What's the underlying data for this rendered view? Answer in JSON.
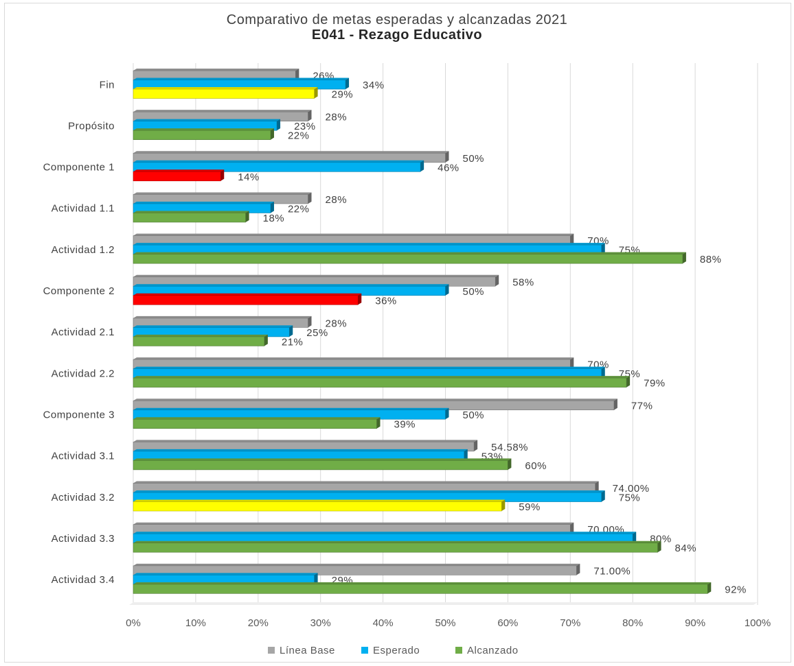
{
  "chart_data": {
    "type": "bar",
    "orientation": "horizontal",
    "title": "Comparativo de metas esperadas y alcanzadas 2021",
    "subtitle": "E041 - Rezago Educativo",
    "categories": [
      "Fin",
      "Propósito",
      "Componente 1",
      "Actividad 1.1",
      "Actividad 1.2",
      "Componente 2",
      "Actividad 2.1",
      "Actividad 2.2",
      "Componente 3",
      "Actividad 3.1",
      "Actividad 3.2",
      "Actividad 3.3",
      "Actividad 3.4"
    ],
    "series": [
      {
        "name": "Línea Base",
        "color": "#a6a6a6",
        "values": [
          26,
          28,
          50,
          28,
          70,
          58,
          28,
          70,
          77,
          54.58,
          74,
          70,
          71
        ],
        "labels": [
          "26%",
          "28%",
          "50%",
          "28%",
          "70%",
          "58%",
          "28%",
          "70%",
          "77%",
          "54.58%",
          "74.00%",
          "70.00%",
          "71.00%"
        ]
      },
      {
        "name": "Esperado",
        "color": "#00b0f0",
        "values": [
          34,
          23,
          46,
          22,
          75,
          50,
          25,
          75,
          50,
          53,
          75,
          80,
          29
        ],
        "labels": [
          "34%",
          "23%",
          "46%",
          "22%",
          "75%",
          "50%",
          "25%",
          "75%",
          "50%",
          "53%",
          "75%",
          "80%",
          "29%"
        ]
      },
      {
        "name": "Alcanzado",
        "color": "#70ad47",
        "values": [
          29,
          22,
          14,
          18,
          88,
          36,
          21,
          79,
          39,
          60,
          59,
          84,
          92
        ],
        "labels": [
          "29%",
          "22%",
          "14%",
          "18%",
          "88%",
          "36%",
          "21%",
          "79%",
          "39%",
          "60%",
          "59%",
          "84%",
          "92%"
        ],
        "point_colors": [
          "#ffff00",
          "#70ad47",
          "#ff0000",
          "#70ad47",
          "#70ad47",
          "#ff0000",
          "#70ad47",
          "#70ad47",
          "#70ad47",
          "#70ad47",
          "#ffff00",
          "#70ad47",
          "#70ad47"
        ]
      }
    ],
    "xlim": [
      0,
      100
    ],
    "xticks": [
      "0%",
      "10%",
      "20%",
      "30%",
      "40%",
      "50%",
      "60%",
      "70%",
      "80%",
      "90%",
      "100%"
    ],
    "grid": true,
    "legend_position": "bottom"
  }
}
